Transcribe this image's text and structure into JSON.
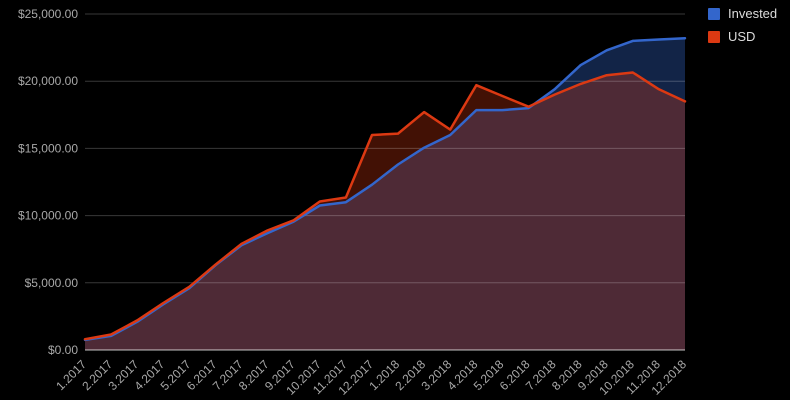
{
  "chart_data": {
    "type": "area",
    "title": "",
    "xlabel": "",
    "ylabel": "",
    "background_color": "#000000",
    "axis_label_color": "#a8a8a8",
    "gridline_color": "rgba(255,255,255,0.22)",
    "baseline_color": "rgba(255,255,255,0.75)",
    "grid": true,
    "legend_position": "top-right",
    "ylim": [
      0,
      25000
    ],
    "y_ticks": [
      {
        "value": 0,
        "label": "$0.00"
      },
      {
        "value": 5000,
        "label": "$5,000.00"
      },
      {
        "value": 10000,
        "label": "$10,000.00"
      },
      {
        "value": 15000,
        "label": "$15,000.00"
      },
      {
        "value": 20000,
        "label": "$20,000.00"
      },
      {
        "value": 25000,
        "label": "$25,000.00"
      }
    ],
    "categories": [
      "1.2017",
      "2.2017",
      "3.2017",
      "4.2017",
      "5.2017",
      "6.2017",
      "7.2017",
      "8.2017",
      "9.2017",
      "10.2017",
      "11.2017",
      "12.2017",
      "1.2018",
      "2.2018",
      "3.2018",
      "4.2018",
      "5.2018",
      "6.2018",
      "7.2018",
      "8.2018",
      "9.2018",
      "10.2018",
      "11.2018",
      "12.2018"
    ],
    "series": [
      {
        "name": "Invested",
        "color": "#3366CC",
        "fill_opacity": 0.35,
        "values": [
          750,
          1050,
          2100,
          3400,
          4600,
          6300,
          7800,
          8700,
          9550,
          10750,
          11000,
          12300,
          13800,
          15050,
          16000,
          17850,
          17850,
          18000,
          19400,
          21200,
          22300,
          23000,
          23100,
          23200
        ]
      },
      {
        "name": "USD",
        "color": "#DC3912",
        "fill_opacity": 0.3,
        "values": [
          800,
          1150,
          2200,
          3500,
          4700,
          6350,
          7900,
          8900,
          9650,
          11050,
          11350,
          16000,
          16100,
          17700,
          16400,
          19700,
          18900,
          18100,
          19000,
          19800,
          20450,
          20650,
          19400,
          18500
        ]
      }
    ]
  },
  "legend": {
    "items": [
      {
        "label": "Invested",
        "color": "#3366CC"
      },
      {
        "label": "USD",
        "color": "#DC3912"
      }
    ]
  }
}
